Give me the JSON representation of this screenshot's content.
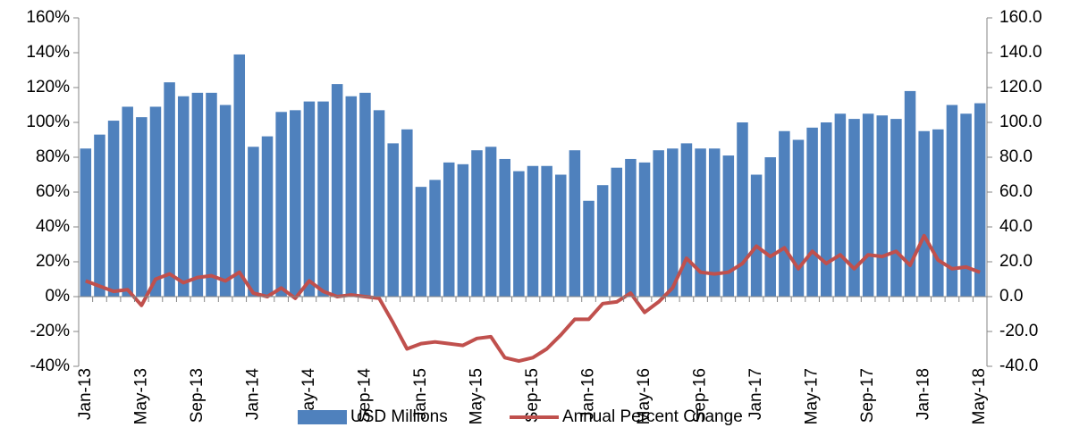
{
  "chart_data": {
    "type": "bar_line",
    "categories": [
      "Jan-13",
      null,
      null,
      null,
      "May-13",
      null,
      null,
      null,
      "Sep-13",
      null,
      null,
      null,
      "Jan-14",
      null,
      null,
      null,
      "May-14",
      null,
      null,
      null,
      "Sep-14",
      null,
      null,
      null,
      "Jan-15",
      null,
      null,
      null,
      "May-15",
      null,
      null,
      null,
      "Sep-15",
      null,
      null,
      null,
      "Jan-16",
      null,
      null,
      null,
      "May-16",
      null,
      null,
      null,
      "Sep-16",
      null,
      null,
      null,
      "Jan-17",
      null,
      null,
      null,
      "May-17",
      null,
      null,
      null,
      "Sep-17",
      null,
      null,
      null,
      "Jan-18",
      null,
      null,
      null,
      "May-18"
    ],
    "series": [
      {
        "name": "USD Millions",
        "type": "bar",
        "axis": "y2",
        "color": "#4f81bd",
        "values": [
          85,
          93,
          101,
          109,
          103,
          109,
          123,
          115,
          117,
          117,
          110,
          139,
          86,
          92,
          106,
          107,
          112,
          112,
          122,
          115,
          117,
          107,
          88,
          96,
          63,
          67,
          77,
          76,
          84,
          86,
          79,
          72,
          75,
          75,
          70,
          84,
          55,
          64,
          74,
          79,
          77,
          84,
          85,
          88,
          85,
          85,
          81,
          100,
          70,
          80,
          95,
          90,
          97,
          100,
          105,
          102,
          105,
          104,
          102,
          118,
          95,
          96,
          110,
          105,
          111
        ]
      },
      {
        "name": "Annual Percent Change",
        "type": "line",
        "color": "#c0504d",
        "values": [
          9,
          6,
          3,
          4,
          -5,
          10,
          13,
          8,
          11,
          12,
          9,
          14,
          2,
          0,
          5,
          -1,
          9,
          3,
          0,
          1,
          0,
          -1,
          -15,
          -30,
          -27,
          -26,
          -27,
          -28,
          -24,
          -23,
          -35,
          -37,
          -35,
          -30,
          -22,
          -13,
          -13,
          -4,
          -3,
          2,
          -9,
          -3,
          5,
          22,
          14,
          13,
          14,
          19,
          29,
          23,
          28,
          16,
          26,
          19,
          24,
          16,
          24,
          23,
          26,
          18,
          35,
          21,
          16,
          17,
          14
        ]
      }
    ],
    "ylim": [
      -40,
      160
    ],
    "yticks": [
      {
        "value": -40,
        "label": "-40%"
      },
      {
        "value": -20,
        "label": "-20%"
      },
      {
        "value": 0,
        "label": "0%"
      },
      {
        "value": 20,
        "label": "20%"
      },
      {
        "value": 40,
        "label": "40%"
      },
      {
        "value": 60,
        "label": "60%"
      },
      {
        "value": 80,
        "label": "80%"
      },
      {
        "value": 100,
        "label": "100%"
      },
      {
        "value": 120,
        "label": "120%"
      },
      {
        "value": 140,
        "label": "140%"
      },
      {
        "value": 160,
        "label": "160%"
      }
    ],
    "y2lim": [
      -40,
      160
    ],
    "y2ticks": [
      {
        "value": -40,
        "label": "-40.0"
      },
      {
        "value": -20,
        "label": "-20.0"
      },
      {
        "value": 0,
        "label": "0.0"
      },
      {
        "value": 20,
        "label": "20.0"
      },
      {
        "value": 40,
        "label": "40.0"
      },
      {
        "value": 60,
        "label": "60.0"
      },
      {
        "value": 80,
        "label": "80.0"
      },
      {
        "value": 100,
        "label": "100.0"
      },
      {
        "value": 120,
        "label": "120.0"
      },
      {
        "value": 140,
        "label": "140.0"
      },
      {
        "value": 160,
        "label": "160.0"
      }
    ],
    "legend": "bottom"
  }
}
